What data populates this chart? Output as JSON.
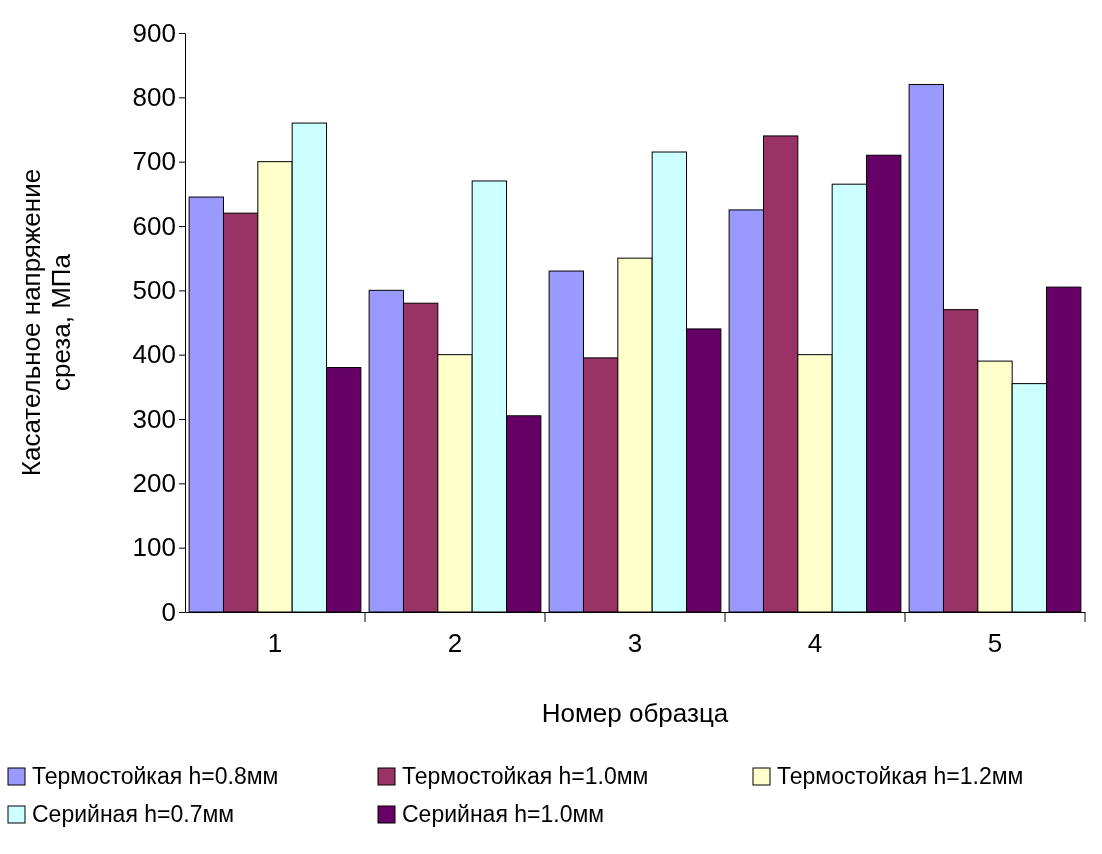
{
  "chart_data": {
    "type": "bar",
    "xlabel": "Номер образца",
    "ylabel": "Касательное напряжение среза, МПа",
    "categories": [
      "1",
      "2",
      "3",
      "4",
      "5"
    ],
    "series": [
      {
        "name": "Термостойкая h=0.8мм",
        "color": "#9999ff",
        "values": [
          645,
          500,
          530,
          625,
          820
        ]
      },
      {
        "name": "Термостойкая h=1.0мм",
        "color": "#993366",
        "values": [
          620,
          480,
          395,
          740,
          470
        ]
      },
      {
        "name": "Термостойкая h=1.2мм",
        "color": "#ffffcc",
        "values": [
          700,
          400,
          550,
          400,
          390
        ]
      },
      {
        "name": "Серийная h=0.7мм",
        "color": "#ccffff",
        "values": [
          760,
          670,
          715,
          665,
          355
        ]
      },
      {
        "name": "Серийная h=1.0мм",
        "color": "#660066",
        "values": [
          380,
          305,
          440,
          710,
          505
        ]
      }
    ],
    "ylim": [
      0,
      900
    ],
    "yticks": [
      0,
      100,
      200,
      300,
      400,
      500,
      600,
      700,
      800,
      900
    ],
    "grid": false,
    "legend": "bottom"
  }
}
